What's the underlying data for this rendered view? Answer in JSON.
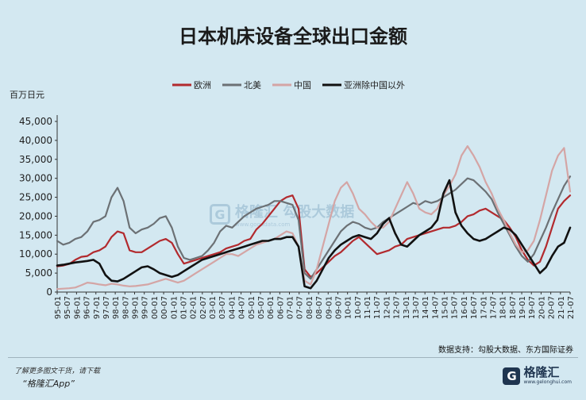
{
  "page": {
    "source": "数据支持：勾股大数据、东方国际证券",
    "promo_line1": "了解更多图文干货，请下载",
    "promo_line2": "“格隆汇App”",
    "brand_mark": "G",
    "brand_name": "格隆汇",
    "brand_url": "www.gelonghui.com",
    "watermark_text": "格隆汇 勾股大数据",
    "watermark_url": "www.gogudata.com"
  },
  "chart_data": {
    "type": "line",
    "title": "日本机床设备全球出口金额",
    "ylabel": "百万日元",
    "ylim": [
      0,
      45000
    ],
    "yticks": [
      "0",
      "5,000",
      "10,000",
      "15,000",
      "20,000",
      "25,000",
      "30,000",
      "35,000",
      "40,000",
      "45,000"
    ],
    "xticks": [
      "95-01",
      "95-07",
      "96-01",
      "96-07",
      "97-01",
      "97-07",
      "98-01",
      "98-07",
      "99-01",
      "99-07",
      "00-01",
      "00-07",
      "01-01",
      "01-07",
      "02-01",
      "02-07",
      "03-01",
      "03-07",
      "04-01",
      "04-07",
      "05-01",
      "05-07",
      "06-01",
      "06-07",
      "07-01",
      "07-07",
      "08-01",
      "08-07",
      "09-01",
      "09-07",
      "10-01",
      "10-07",
      "11-01",
      "11-07",
      "12-01",
      "12-07",
      "13-01",
      "13-07",
      "14-01",
      "14-07",
      "15-01",
      "15-07",
      "16-01",
      "16-07",
      "17-01",
      "17-07",
      "18-01",
      "18-07",
      "19-01",
      "19-07",
      "20-01",
      "20-07",
      "21-01",
      "21-07"
    ],
    "legend_position": "top",
    "grid": false,
    "series": [
      {
        "name": "欧洲",
        "color": "#b22a2e",
        "values": [
          6800,
          7000,
          7400,
          8500,
          9300,
          9500,
          10500,
          11000,
          12000,
          14500,
          16000,
          15500,
          11000,
          10500,
          10500,
          11500,
          12500,
          13500,
          14000,
          13000,
          10000,
          7500,
          8000,
          8500,
          9000,
          9500,
          10000,
          10500,
          11500,
          12000,
          12500,
          13500,
          14000,
          16500,
          18000,
          20000,
          22000,
          24000,
          25000,
          25500,
          22000,
          6000,
          4000,
          5000,
          6500,
          8000,
          9500,
          10500,
          12000,
          13500,
          14500,
          13000,
          11500,
          10000,
          10500,
          11000,
          12000,
          12500,
          14000,
          14500,
          15000,
          15500,
          16000,
          16500,
          17000,
          17000,
          17500,
          18500,
          20000,
          20500,
          21500,
          22000,
          21000,
          20000,
          19000,
          17000,
          14500,
          11000,
          8500,
          7000,
          8000,
          12000,
          17000,
          22000,
          24000,
          25500
        ]
      },
      {
        "name": "北美",
        "color": "#6c7175",
        "values": [
          13500,
          12500,
          13000,
          14000,
          14500,
          16000,
          18500,
          19000,
          20000,
          25000,
          27500,
          24000,
          17000,
          15500,
          16500,
          17000,
          18000,
          19500,
          20000,
          17000,
          12000,
          9000,
          8500,
          9000,
          9500,
          11000,
          13000,
          16000,
          17500,
          17000,
          18500,
          20000,
          21000,
          22000,
          22500,
          23000,
          24000,
          24000,
          23500,
          23000,
          19000,
          5000,
          3500,
          6000,
          8500,
          11000,
          13500,
          16000,
          17500,
          18500,
          18000,
          17000,
          16500,
          17000,
          18500,
          19500,
          20500,
          21500,
          22500,
          23500,
          23000,
          24000,
          23500,
          24000,
          25000,
          26000,
          27000,
          28500,
          30000,
          29500,
          28000,
          26500,
          24500,
          21000,
          18000,
          15000,
          12000,
          9500,
          8000,
          10000,
          13500,
          17000,
          21000,
          24500,
          28000,
          30500
        ]
      },
      {
        "name": "中国",
        "color": "#d4a5a5",
        "values": [
          800,
          900,
          1000,
          1200,
          1800,
          2500,
          2300,
          2000,
          1800,
          2200,
          2000,
          1700,
          1500,
          1600,
          1800,
          2000,
          2500,
          3000,
          3500,
          3000,
          2500,
          3000,
          4000,
          5000,
          6000,
          7000,
          8000,
          9000,
          10000,
          10000,
          9500,
          10500,
          11500,
          12500,
          13000,
          13500,
          14000,
          15000,
          16000,
          15500,
          12000,
          3000,
          2000,
          6000,
          12000,
          18000,
          24000,
          27500,
          29000,
          26000,
          22000,
          20500,
          18500,
          17000,
          17000,
          18500,
          22000,
          25500,
          29000,
          26000,
          22000,
          21000,
          20500,
          22000,
          25500,
          28000,
          31000,
          36000,
          38500,
          36000,
          33000,
          29000,
          26000,
          22000,
          19000,
          15500,
          12500,
          10500,
          11000,
          13500,
          19000,
          25500,
          32000,
          36000,
          38000,
          26500
        ]
      },
      {
        "name": "亚洲除中国以外",
        "color": "#111111",
        "values": [
          7000,
          7200,
          7500,
          7800,
          8000,
          8200,
          8500,
          7500,
          4500,
          3000,
          2800,
          3500,
          4500,
          5500,
          6500,
          6800,
          6000,
          5000,
          4500,
          4000,
          4500,
          5500,
          6500,
          7500,
          8500,
          9000,
          9500,
          10000,
          10500,
          11000,
          11500,
          12000,
          12500,
          13000,
          13500,
          13500,
          14000,
          14000,
          14500,
          14500,
          12000,
          1500,
          1000,
          3000,
          6000,
          9000,
          11000,
          12500,
          13500,
          14500,
          15000,
          14500,
          14000,
          15500,
          18000,
          19500,
          15500,
          12500,
          12000,
          13500,
          15000,
          16000,
          17000,
          19000,
          26000,
          29500,
          21000,
          17500,
          15500,
          14000,
          13500,
          14000,
          15000,
          16000,
          17000,
          16500,
          15000,
          12500,
          10000,
          7500,
          5000,
          6500,
          9500,
          12000,
          13000,
          17000
        ]
      }
    ]
  }
}
